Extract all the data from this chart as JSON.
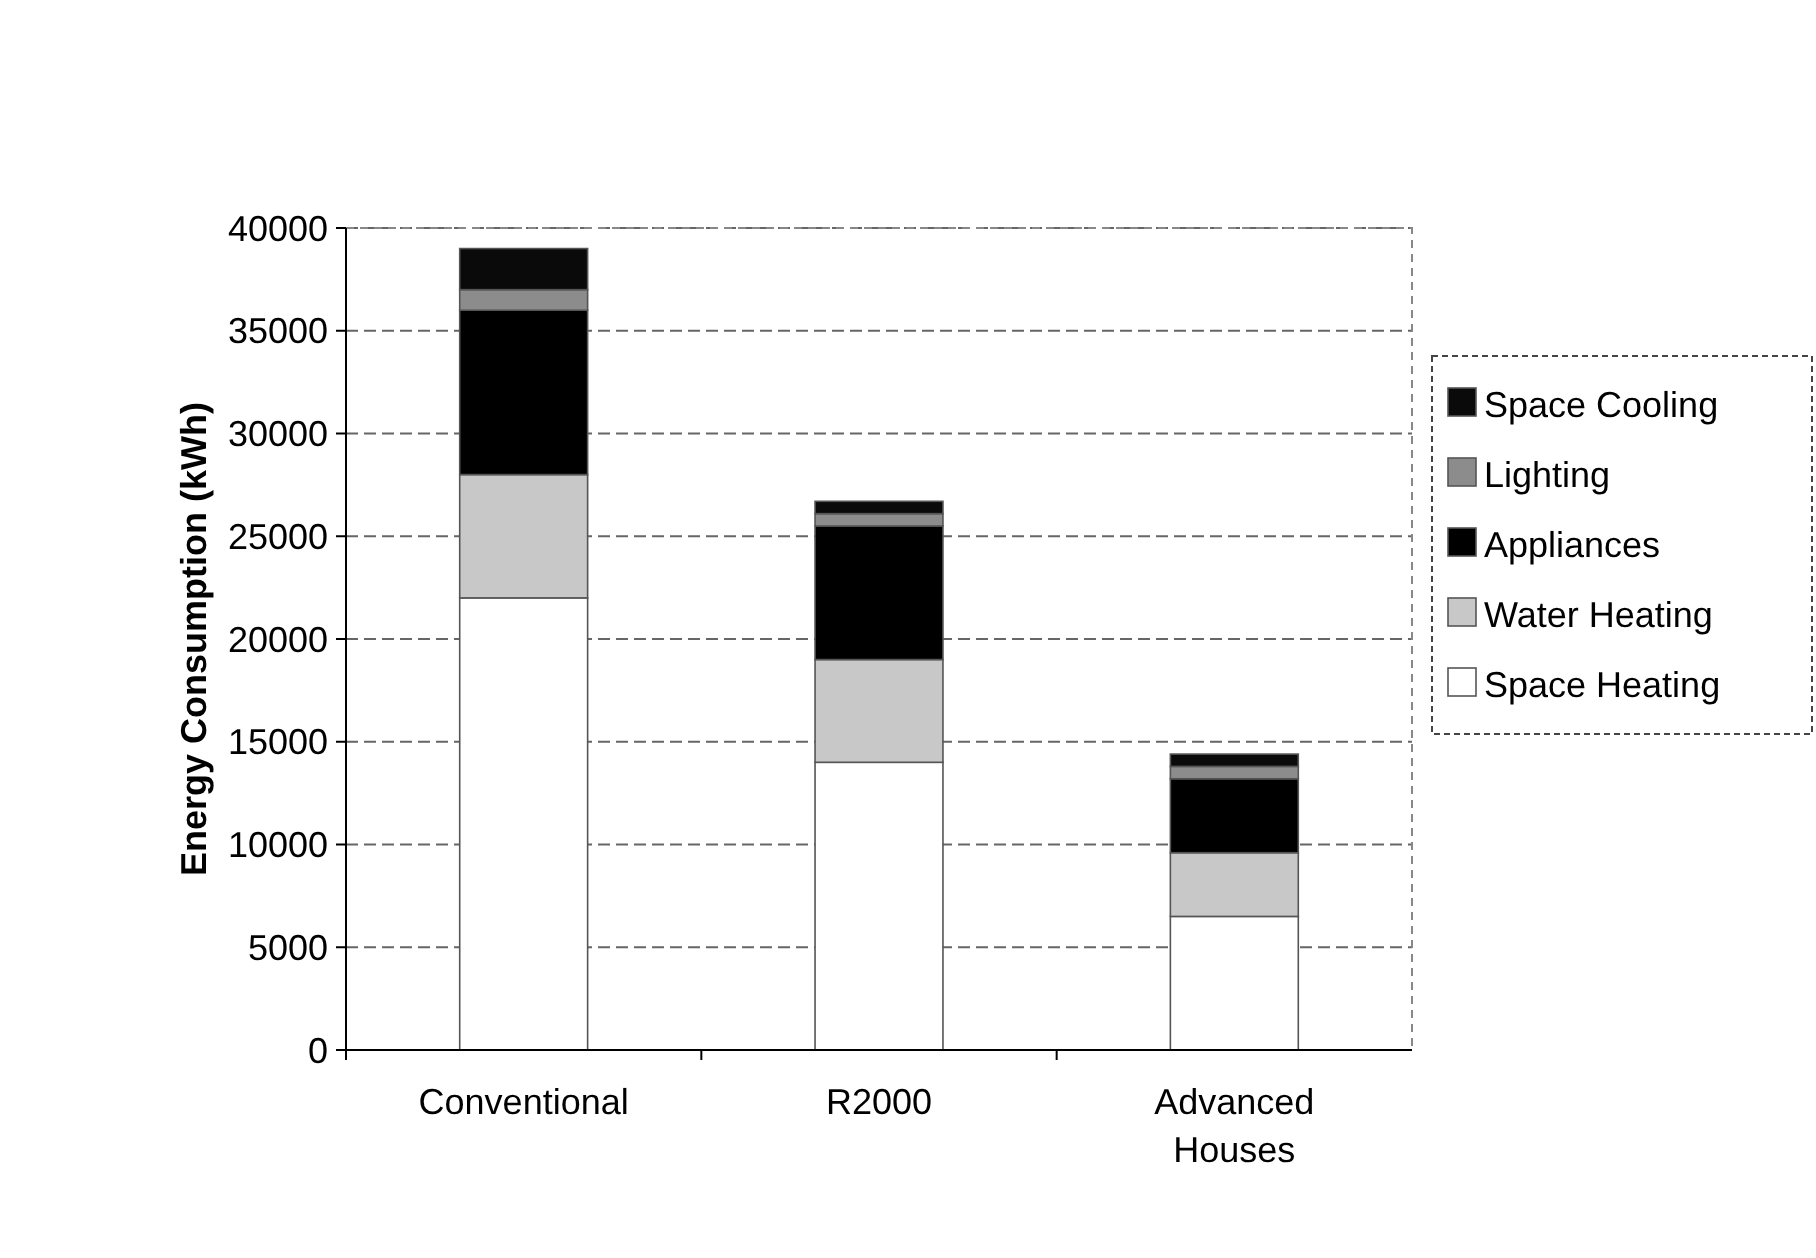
{
  "chart_data": {
    "type": "bar",
    "stacked": true,
    "ylabel": "Energy Consumption (kWh)",
    "categories": [
      "Conventional",
      "R2000",
      "Advanced Houses"
    ],
    "series": [
      {
        "name": "Space Heating",
        "color": "#ffffff",
        "values": [
          22000,
          14000,
          6500
        ]
      },
      {
        "name": "Water Heating",
        "color": "#c8c8c8",
        "values": [
          6000,
          5000,
          3100
        ]
      },
      {
        "name": "Appliances",
        "color": "#000000",
        "values": [
          8000,
          6500,
          3600
        ]
      },
      {
        "name": "Lighting",
        "color": "#8c8c8c",
        "values": [
          1000,
          600,
          600
        ]
      },
      {
        "name": "Space Cooling",
        "color": "#0a0a0a",
        "values": [
          2000,
          600,
          600
        ]
      }
    ],
    "ylim": [
      0,
      40000
    ],
    "yticks": [
      0,
      5000,
      10000,
      15000,
      20000,
      25000,
      30000,
      35000,
      40000
    ],
    "grid": "y",
    "legend": "right"
  }
}
